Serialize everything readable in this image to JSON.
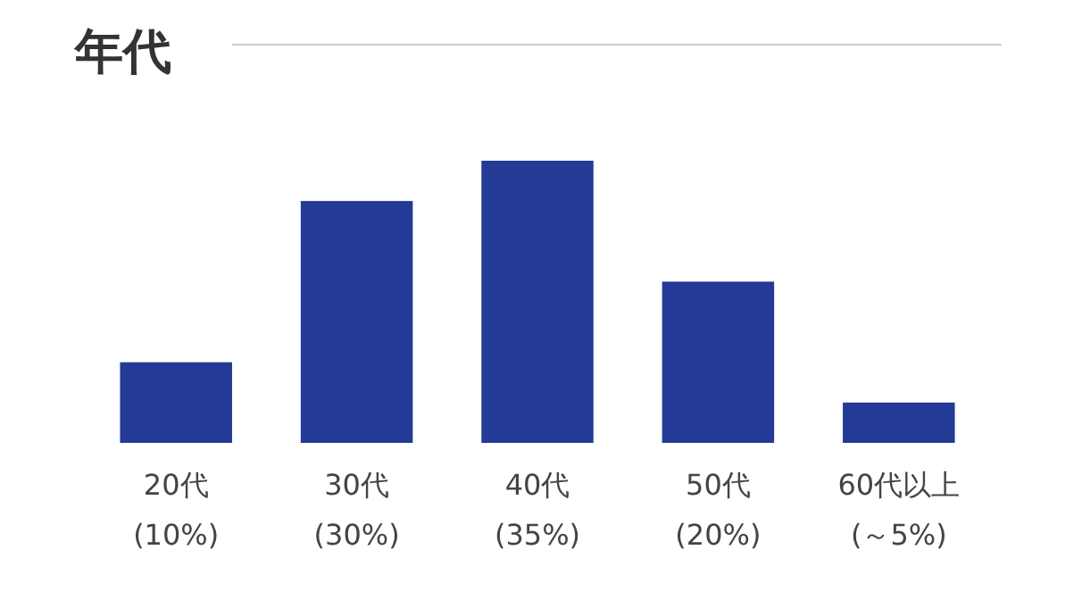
{
  "chart_data": {
    "type": "bar",
    "title": "年代",
    "categories": [
      "20代",
      "30代",
      "40代",
      "50代",
      "60代以上"
    ],
    "values": [
      10,
      30,
      35,
      20,
      5
    ],
    "value_labels": [
      "(10%)",
      "(30%)",
      "(35%)",
      "(20%)",
      "(～5%)"
    ],
    "color": "#233a96"
  }
}
